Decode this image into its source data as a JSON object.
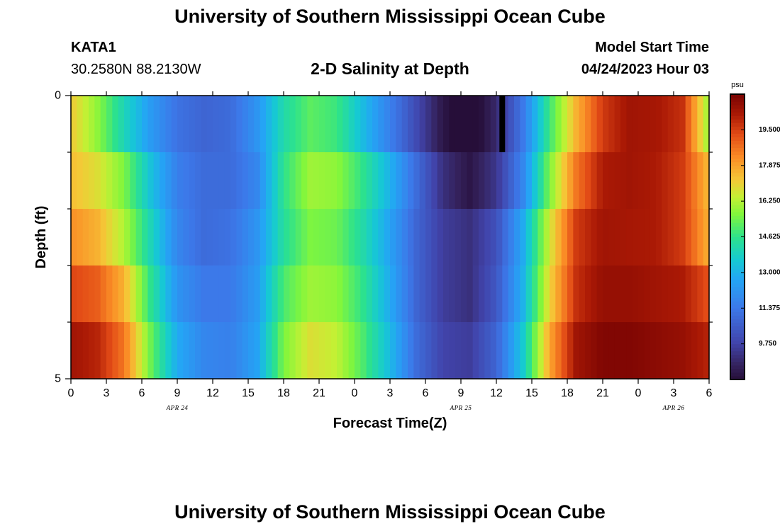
{
  "header": {
    "title": "University of Southern Mississippi Ocean Cube",
    "station": "KATA1",
    "coords": "30.2580N  88.2130W",
    "chart_label": "2-D Salinity at Depth",
    "model_start_label": "Model Start Time",
    "model_start_value": "04/24/2023 Hour 03"
  },
  "footer": {
    "title": "University of Southern Mississippi Ocean Cube"
  },
  "chart_data": {
    "type": "heatmap",
    "title": "2-D Salinity at Depth",
    "xlabel": "Forecast Time(Z)",
    "ylabel": "Depth (ft)",
    "x_tick_labels": [
      "0",
      "3",
      "6",
      "9",
      "12",
      "15",
      "18",
      "21",
      "0",
      "3",
      "6",
      "9",
      "12",
      "15",
      "18",
      "21",
      "0",
      "3",
      "6"
    ],
    "x_range_hours": [
      0,
      54
    ],
    "date_labels": [
      {
        "label": "APR 24",
        "hour": 9
      },
      {
        "label": "APR 25",
        "hour": 33
      },
      {
        "label": "APR 26",
        "hour": 51
      }
    ],
    "y_range": [
      0,
      5
    ],
    "y_tick_labels": [
      "0",
      "5"
    ],
    "y_minor_ticks": [
      1,
      2,
      3,
      4
    ],
    "depth_layers": 5,
    "colorbar": {
      "unit": "psu",
      "min": 8.125,
      "max": 21.125,
      "tick_values": [
        9.75,
        11.375,
        13.0,
        14.625,
        16.25,
        17.875,
        19.5
      ],
      "tick_labels": [
        "9.750",
        "11.375",
        "13.000",
        "14.625",
        "16.250",
        "17.875",
        "19.500"
      ]
    },
    "series": [
      {
        "name": "0-1 ft",
        "values": [
          17.2,
          15.8,
          14.0,
          12.4,
          11.2,
          10.8,
          11.0,
          12.2,
          14.2,
          15.2,
          14.8,
          13.2,
          11.6,
          10.0,
          8.4,
          7.6,
          9.0,
          11.4,
          14.8,
          17.6,
          19.6,
          20.4,
          20.3,
          19.8,
          15.8
        ]
      },
      {
        "name": "1-2 ft",
        "values": [
          17.4,
          16.8,
          15.6,
          13.4,
          11.6,
          11.0,
          11.0,
          11.8,
          14.6,
          16.0,
          15.8,
          14.6,
          13.0,
          11.0,
          9.2,
          8.4,
          9.4,
          11.8,
          15.6,
          18.6,
          20.2,
          20.4,
          20.2,
          19.6,
          17.4
        ]
      },
      {
        "name": "2-3 ft",
        "values": [
          18.2,
          17.6,
          16.2,
          14.0,
          11.8,
          11.0,
          11.2,
          12.2,
          14.4,
          15.6,
          15.4,
          14.2,
          12.6,
          10.8,
          9.6,
          9.2,
          10.2,
          12.8,
          16.6,
          19.6,
          20.4,
          20.3,
          20.2,
          19.6,
          17.6
        ]
      },
      {
        "name": "3-4 ft",
        "values": [
          19.4,
          19.0,
          17.6,
          14.6,
          12.2,
          11.4,
          11.4,
          12.4,
          15.0,
          16.0,
          15.8,
          14.6,
          12.8,
          10.8,
          9.6,
          9.2,
          10.4,
          13.0,
          17.0,
          19.8,
          20.6,
          20.6,
          20.4,
          20.2,
          19.2
        ]
      },
      {
        "name": "4-5 ft",
        "values": [
          20.4,
          20.0,
          18.6,
          15.4,
          12.8,
          11.8,
          11.6,
          12.6,
          15.6,
          16.8,
          16.4,
          15.0,
          13.2,
          11.0,
          9.8,
          9.6,
          10.8,
          13.6,
          17.8,
          20.4,
          21.0,
          21.0,
          20.8,
          20.6,
          20.0
        ]
      }
    ],
    "missing_marker": {
      "hour": 36.5,
      "depth_from": 0,
      "depth_to": 1
    }
  }
}
